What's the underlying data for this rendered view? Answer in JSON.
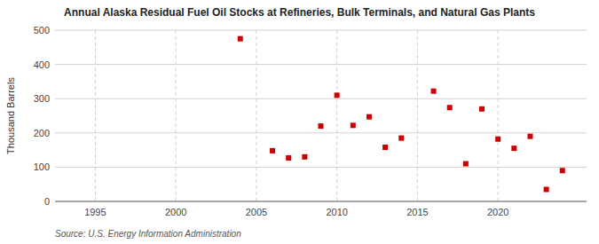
{
  "chart_data": {
    "type": "scatter",
    "title": "Annual Alaska Residual Fuel Oil Stocks at Refineries, Bulk Terminals, and Natural Gas Plants",
    "y_label": "Thousand Barrels",
    "annotations": [
      "Source: U.S. Energy Information Administration"
    ],
    "x": [
      2004,
      2006,
      2007,
      2008,
      2009,
      2010,
      2011,
      2012,
      2013,
      2014,
      2016,
      2017,
      2018,
      2019,
      2020,
      2021,
      2022,
      2023,
      2024
    ],
    "values": [
      475,
      148,
      127,
      130,
      220,
      310,
      222,
      247,
      158,
      185,
      322,
      274,
      110,
      270,
      182,
      155,
      190,
      35,
      90
    ],
    "color": "#cc0000",
    "marker": "square",
    "xlim": [
      1992.5,
      2025.5
    ],
    "ylim": [
      0,
      500
    ],
    "xticks": [
      1995,
      2000,
      2005,
      2010,
      2015,
      2020
    ],
    "yticks": [
      0,
      100,
      200,
      300,
      400,
      500
    ],
    "grid": true
  }
}
